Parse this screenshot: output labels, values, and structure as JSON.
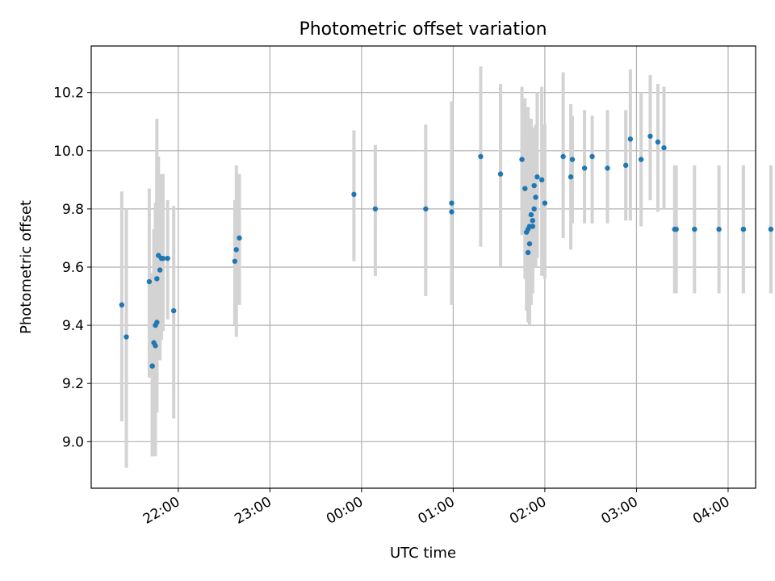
{
  "chart_data": {
    "type": "scatter",
    "title": "Photometric offset variation",
    "xlabel": "UTC time",
    "ylabel": "Photometric offset",
    "x_ticks": [
      "22:00",
      "23:00",
      "00:00",
      "01:00",
      "02:00",
      "03:00",
      "04:00"
    ],
    "y_ticks": [
      "9.0",
      "9.2",
      "9.4",
      "9.6",
      "9.8",
      "10.0",
      "10.2"
    ],
    "x_range": [
      "21:03",
      "04:18"
    ],
    "ylim": [
      8.84,
      10.36
    ],
    "grid": true,
    "colors": {
      "points": "#1f77b4",
      "errorbars": "#d3d3d3",
      "grid": "#b0b0b0"
    },
    "series": [
      {
        "x": [
          "21:23",
          "21:26",
          "21:41",
          "21:43",
          "21:43",
          "21:44",
          "21:45",
          "21:45",
          "21:46",
          "21:46",
          "21:46",
          "21:47",
          "21:48",
          "21:49",
          "21:49",
          "21:50",
          "21:53",
          "21:57",
          "22:37",
          "22:38",
          "22:40",
          "23:55",
          "00:09",
          "00:42",
          "00:59",
          "00:59",
          "01:18",
          "01:31",
          "01:45",
          "01:47",
          "01:48",
          "01:49",
          "01:49",
          "01:50",
          "01:50",
          "01:51",
          "01:52",
          "01:52",
          "01:52",
          "01:53",
          "01:53",
          "01:54",
          "01:55",
          "01:58",
          "02:00",
          "02:12",
          "02:17",
          "02:18",
          "02:26",
          "02:31",
          "02:41",
          "02:53",
          "02:56",
          "03:03",
          "03:09",
          "03:14",
          "03:18",
          "03:25",
          "03:26",
          "03:38",
          "03:54",
          "04:10",
          "04:10",
          "04:28"
        ],
        "y": [
          9.47,
          9.36,
          9.55,
          9.26,
          9.26,
          9.34,
          9.33,
          9.4,
          9.41,
          9.56,
          9.56,
          9.64,
          9.59,
          9.63,
          9.63,
          9.63,
          9.63,
          9.45,
          9.62,
          9.66,
          9.7,
          9.85,
          9.8,
          9.8,
          9.82,
          9.79,
          9.98,
          9.92,
          9.97,
          9.87,
          9.72,
          9.65,
          9.73,
          9.74,
          9.68,
          9.78,
          9.74,
          9.74,
          9.76,
          9.8,
          9.88,
          9.84,
          9.91,
          9.9,
          9.82,
          9.98,
          9.91,
          9.97,
          9.94,
          9.98,
          9.94,
          9.95,
          10.04,
          9.97,
          10.05,
          10.03,
          10.01,
          9.73,
          9.73,
          9.73,
          9.73,
          9.73,
          9.73,
          9.73
        ],
        "yerr_low": [
          9.07,
          8.91,
          9.22,
          8.95,
          8.95,
          9.0,
          8.95,
          8.99,
          9.1,
          9.18,
          9.17,
          9.29,
          9.28,
          9.35,
          9.35,
          9.38,
          9.42,
          9.08,
          9.4,
          9.36,
          9.47,
          9.62,
          9.57,
          9.5,
          9.47,
          9.51,
          9.67,
          9.6,
          9.71,
          9.56,
          9.45,
          9.42,
          9.41,
          9.4,
          9.44,
          9.47,
          9.54,
          9.51,
          9.55,
          9.6,
          9.63,
          9.6,
          9.63,
          9.57,
          9.56,
          9.7,
          9.66,
          9.75,
          9.75,
          9.75,
          9.75,
          9.76,
          9.76,
          9.74,
          9.83,
          9.79,
          9.8,
          9.51,
          9.51,
          9.51,
          9.51,
          9.51,
          9.51,
          9.51
        ],
        "yerr_high": [
          9.86,
          9.8,
          9.87,
          9.58,
          9.57,
          9.73,
          9.77,
          9.82,
          9.93,
          10.11,
          9.97,
          9.98,
          9.9,
          9.92,
          9.92,
          9.92,
          9.83,
          9.81,
          9.83,
          9.95,
          9.92,
          10.07,
          10.02,
          10.09,
          10.17,
          10.06,
          10.29,
          10.23,
          10.22,
          10.18,
          10.02,
          10.15,
          10.03,
          10.03,
          10.06,
          10.11,
          10.06,
          10.06,
          10.06,
          10.08,
          10.0,
          10.09,
          10.2,
          10.22,
          10.09,
          10.27,
          10.16,
          10.12,
          10.14,
          10.12,
          10.14,
          10.14,
          10.28,
          10.2,
          10.26,
          10.23,
          10.22,
          9.95,
          9.95,
          9.95,
          9.95,
          9.95,
          9.95,
          9.95
        ]
      }
    ]
  }
}
